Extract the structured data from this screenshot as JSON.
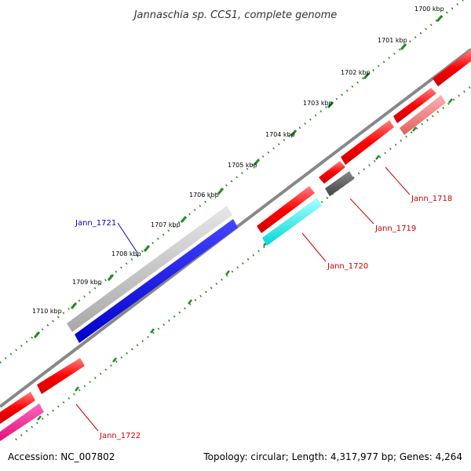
{
  "title": "Jannaschia sp. CCS1, complete genome",
  "accession": "Accession: NC_007802",
  "summary": "Topology: circular; Length: 4,317,977 bp; Genes: 4,264",
  "ticks": [
    {
      "label": "1700 kbp"
    },
    {
      "label": "1701 kbp"
    },
    {
      "label": "1702 kbp"
    },
    {
      "label": "1703 kbp"
    },
    {
      "label": "1704 kbp"
    },
    {
      "label": "1705 kbp"
    },
    {
      "label": "1706 kbp"
    },
    {
      "label": "1707 kbp"
    },
    {
      "label": "1708 kbp"
    },
    {
      "label": "1709 kbp"
    },
    {
      "label": "1710 kbp"
    }
  ],
  "gene_labels": [
    {
      "name": "Jann_1718",
      "color": "#cc0000"
    },
    {
      "name": "Jann_1719",
      "color": "#cc0000"
    },
    {
      "name": "Jann_1720",
      "color": "#cc0000"
    },
    {
      "name": "Jann_1721",
      "color": "#0000cc"
    },
    {
      "name": "Jann_1722",
      "color": "#cc0000"
    }
  ],
  "colors": {
    "backbone": "#777777",
    "tick_dots": "#228b22",
    "gene_red": "#ff0000",
    "gene_pink": "#f08080",
    "gene_gray": "#555555",
    "gene_cyan": "#00ffff",
    "gene_blue": "#0000ee",
    "gene_lightgray": "#c8c8c8",
    "gene_magenta": "#ff1493"
  }
}
